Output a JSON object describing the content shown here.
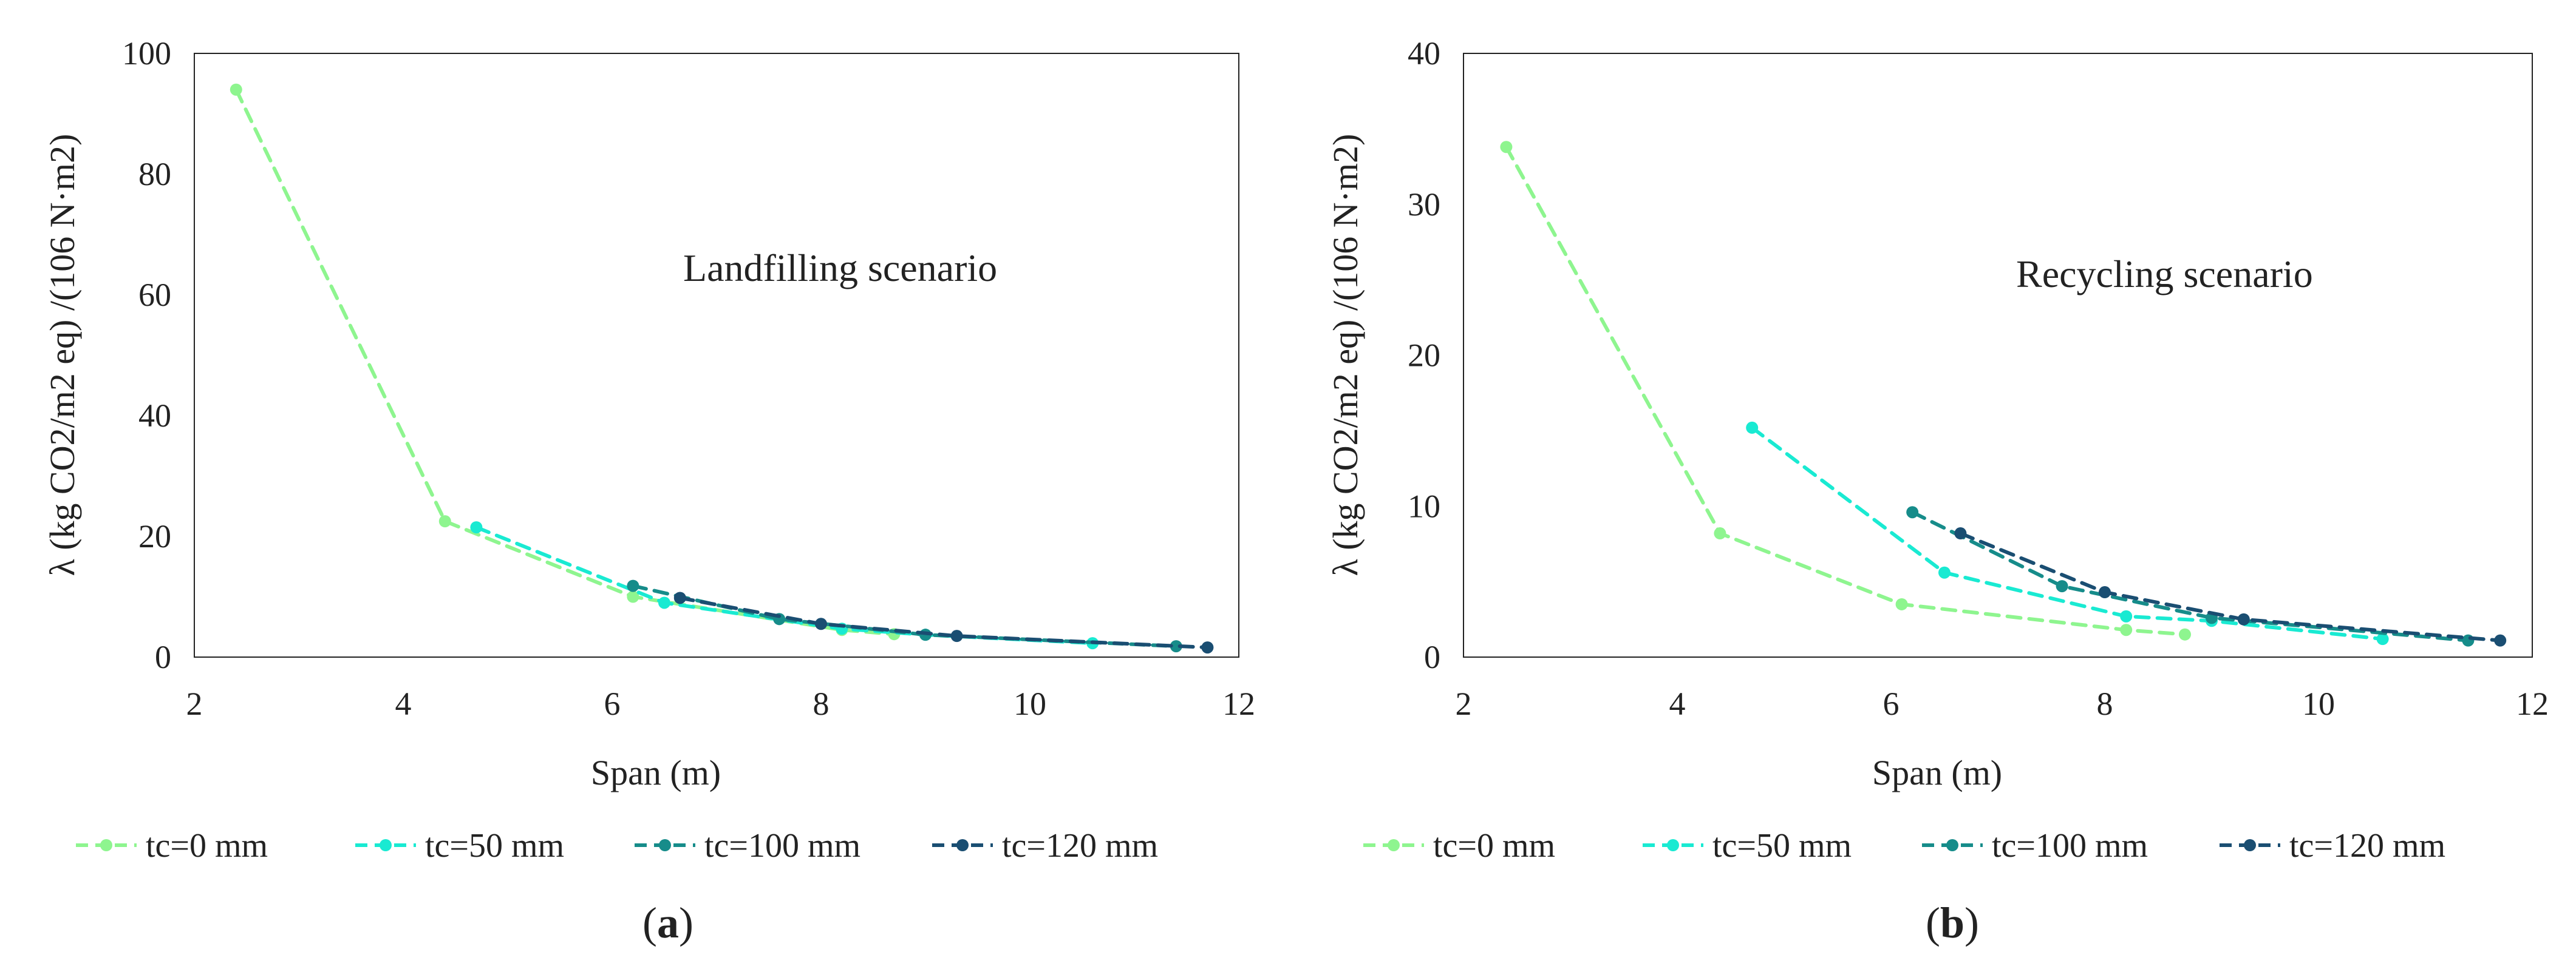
{
  "chart_data": [
    {
      "type": "line",
      "panel_label": "a",
      "annotation": "Landfilling scenario",
      "xlabel": "Span (m)",
      "ylabel": "λ (kg CO2/m2 eq) /(106 N·m2)",
      "xlim": [
        2,
        12
      ],
      "ylim": [
        0,
        100
      ],
      "xticks": [
        2,
        4,
        6,
        8,
        10,
        12
      ],
      "yticks": [
        0,
        20,
        40,
        60,
        80,
        100
      ],
      "grid": false,
      "legend_position": "bottom",
      "series": [
        {
          "name": "tc=0 mm",
          "x": [
            2.4,
            4.4,
            6.2,
            8.2,
            8.7
          ],
          "y": [
            94,
            22.5,
            10,
            4.5,
            3.8
          ]
        },
        {
          "name": "tc=50 mm",
          "x": [
            4.7,
            6.5,
            8.2,
            9.0,
            10.6
          ],
          "y": [
            21.5,
            9.0,
            4.7,
            3.7,
            2.3
          ]
        },
        {
          "name": "tc=100 mm",
          "x": [
            6.2,
            7.6,
            9.0,
            11.4
          ],
          "y": [
            11.8,
            6.3,
            3.7,
            1.8
          ]
        },
        {
          "name": "tc=120 mm",
          "x": [
            6.65,
            8.0,
            9.3,
            11.7
          ],
          "y": [
            9.8,
            5.5,
            3.5,
            1.6
          ]
        }
      ]
    },
    {
      "type": "line",
      "panel_label": "b",
      "annotation": "Recycling scenario",
      "xlabel": "Span (m)",
      "ylabel": "λ (kg CO2/m2 eq) /(106 N·m2)",
      "xlim": [
        2,
        12
      ],
      "ylim": [
        0,
        40
      ],
      "xticks": [
        2,
        4,
        6,
        8,
        10,
        12
      ],
      "yticks": [
        0,
        10,
        20,
        30,
        40
      ],
      "grid": false,
      "legend_position": "bottom",
      "series": [
        {
          "name": "tc=0 mm",
          "x": [
            2.4,
            4.4,
            6.1,
            8.2,
            8.75
          ],
          "y": [
            33.8,
            8.2,
            3.5,
            1.8,
            1.5
          ]
        },
        {
          "name": "tc=50 mm",
          "x": [
            4.7,
            6.5,
            8.2,
            9.0,
            10.6
          ],
          "y": [
            15.2,
            5.6,
            2.7,
            2.4,
            1.2
          ]
        },
        {
          "name": "tc=100 mm",
          "x": [
            6.2,
            7.6,
            9.0,
            11.4
          ],
          "y": [
            9.6,
            4.7,
            2.6,
            1.1
          ]
        },
        {
          "name": "tc=120 mm",
          "x": [
            6.65,
            8.0,
            9.3,
            11.7
          ],
          "y": [
            8.2,
            4.3,
            2.5,
            1.1
          ]
        }
      ]
    }
  ],
  "colors": [
    "#8ef58f",
    "#19ead2",
    "#168c8a",
    "#1a4e72"
  ],
  "axis_color": "#000000"
}
